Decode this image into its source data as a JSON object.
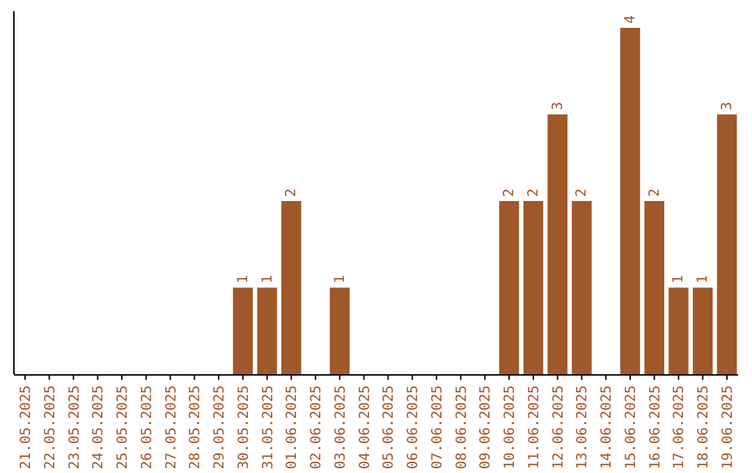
{
  "chart_data": {
    "type": "bar",
    "categories": [
      "21.05.2025",
      "22.05.2025",
      "23.05.2025",
      "24.05.2025",
      "25.05.2025",
      "26.05.2025",
      "27.05.2025",
      "28.05.2025",
      "29.05.2025",
      "30.05.2025",
      "31.05.2025",
      "01.06.2025",
      "02.06.2025",
      "03.06.2025",
      "04.06.2025",
      "05.06.2025",
      "06.06.2025",
      "07.06.2025",
      "08.06.2025",
      "09.06.2025",
      "10.06.2025",
      "11.06.2025",
      "12.06.2025",
      "13.06.2025",
      "14.06.2025",
      "15.06.2025",
      "16.06.2025",
      "17.06.2025",
      "18.06.2025",
      "19.06.2025"
    ],
    "values": [
      0,
      0,
      0,
      0,
      0,
      0,
      0,
      0,
      0,
      1,
      1,
      2,
      0,
      1,
      0,
      0,
      0,
      0,
      0,
      0,
      2,
      2,
      3,
      2,
      0,
      4,
      2,
      1,
      1,
      3
    ],
    "value_labels": [
      null,
      null,
      null,
      null,
      null,
      null,
      null,
      null,
      null,
      "1",
      "1",
      "2",
      null,
      "1",
      null,
      null,
      null,
      null,
      null,
      null,
      "2",
      "2",
      "3",
      "2",
      null,
      "4",
      "2",
      "1",
      "1",
      "3"
    ],
    "color": "#a0582a"
  }
}
